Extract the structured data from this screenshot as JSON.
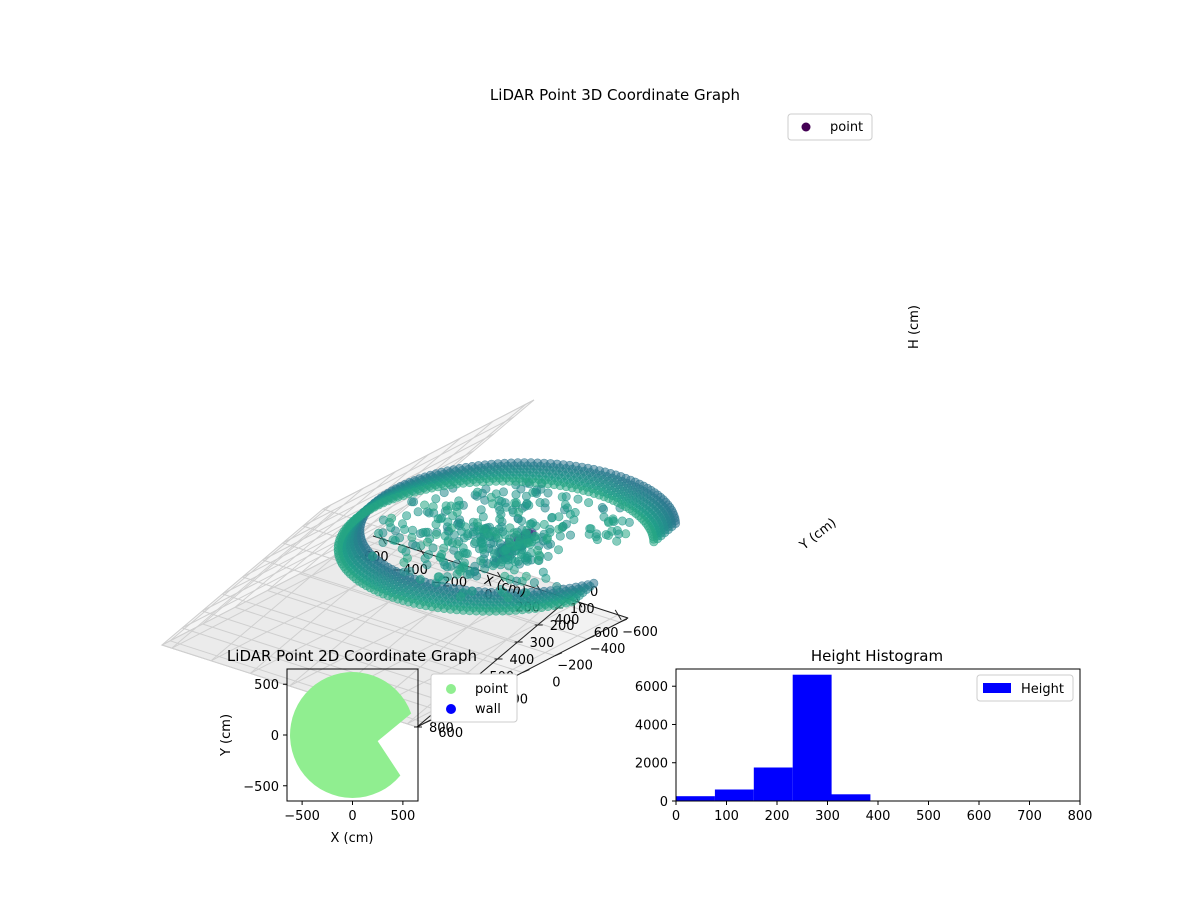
{
  "chart_data": [
    {
      "type": "scatter",
      "title": "LiDAR Point 3D Coordinate Graph",
      "xlabel": "X (cm)",
      "ylabel": "Y (cm)",
      "zlabel": "H (cm)",
      "xlim": [
        -650,
        650
      ],
      "ylim": [
        -650,
        650
      ],
      "zlim": [
        0,
        800
      ],
      "z_inverted": true,
      "x_ticks": [
        -600,
        -400,
        -200,
        0,
        200,
        400,
        600
      ],
      "y_ticks": [
        -600,
        -400,
        -200,
        0,
        200,
        400,
        600
      ],
      "z_ticks": [
        0,
        100,
        200,
        300,
        400,
        500,
        600,
        700,
        800
      ],
      "legend": [
        {
          "label": "point",
          "color": "#440154"
        }
      ],
      "legend_position": "top-right",
      "colormap": "viridis",
      "ring": {
        "radius": 620,
        "h_range": [
          190,
          300
        ],
        "gap_degrees": [
          -40,
          20
        ]
      },
      "grid": true
    },
    {
      "type": "scatter",
      "title": "LiDAR Point 2D Coordinate Graph",
      "xlabel": "X (cm)",
      "ylabel": "Y (cm)",
      "xlim": [
        -650,
        650
      ],
      "ylim": [
        -650,
        650
      ],
      "x_ticks": [
        -500,
        0,
        500
      ],
      "y_ticks": [
        -500,
        0,
        500
      ],
      "series": [
        {
          "name": "point",
          "color": "#90ee90"
        },
        {
          "name": "wall",
          "color": "#0000ff"
        }
      ],
      "legend_position": "outside-right",
      "disc": {
        "radius": 620,
        "gap_degrees": [
          -40,
          20
        ]
      }
    },
    {
      "type": "bar",
      "title": "Height Histogram",
      "xlim": [
        0,
        800
      ],
      "ylim": [
        0,
        6900
      ],
      "x_ticks": [
        0,
        100,
        200,
        300,
        400,
        500,
        600,
        700,
        800
      ],
      "y_ticks": [
        0,
        2000,
        4000,
        6000
      ],
      "bin_edges": [
        0,
        77,
        154,
        231,
        308,
        385,
        462,
        539,
        616,
        693,
        770
      ],
      "values": [
        250,
        600,
        1750,
        6600,
        350,
        8,
        5,
        3,
        3,
        2
      ],
      "color": "#0000ff",
      "series": [
        {
          "name": "Height",
          "color": "#0000ff"
        }
      ],
      "legend_position": "top-right"
    }
  ]
}
